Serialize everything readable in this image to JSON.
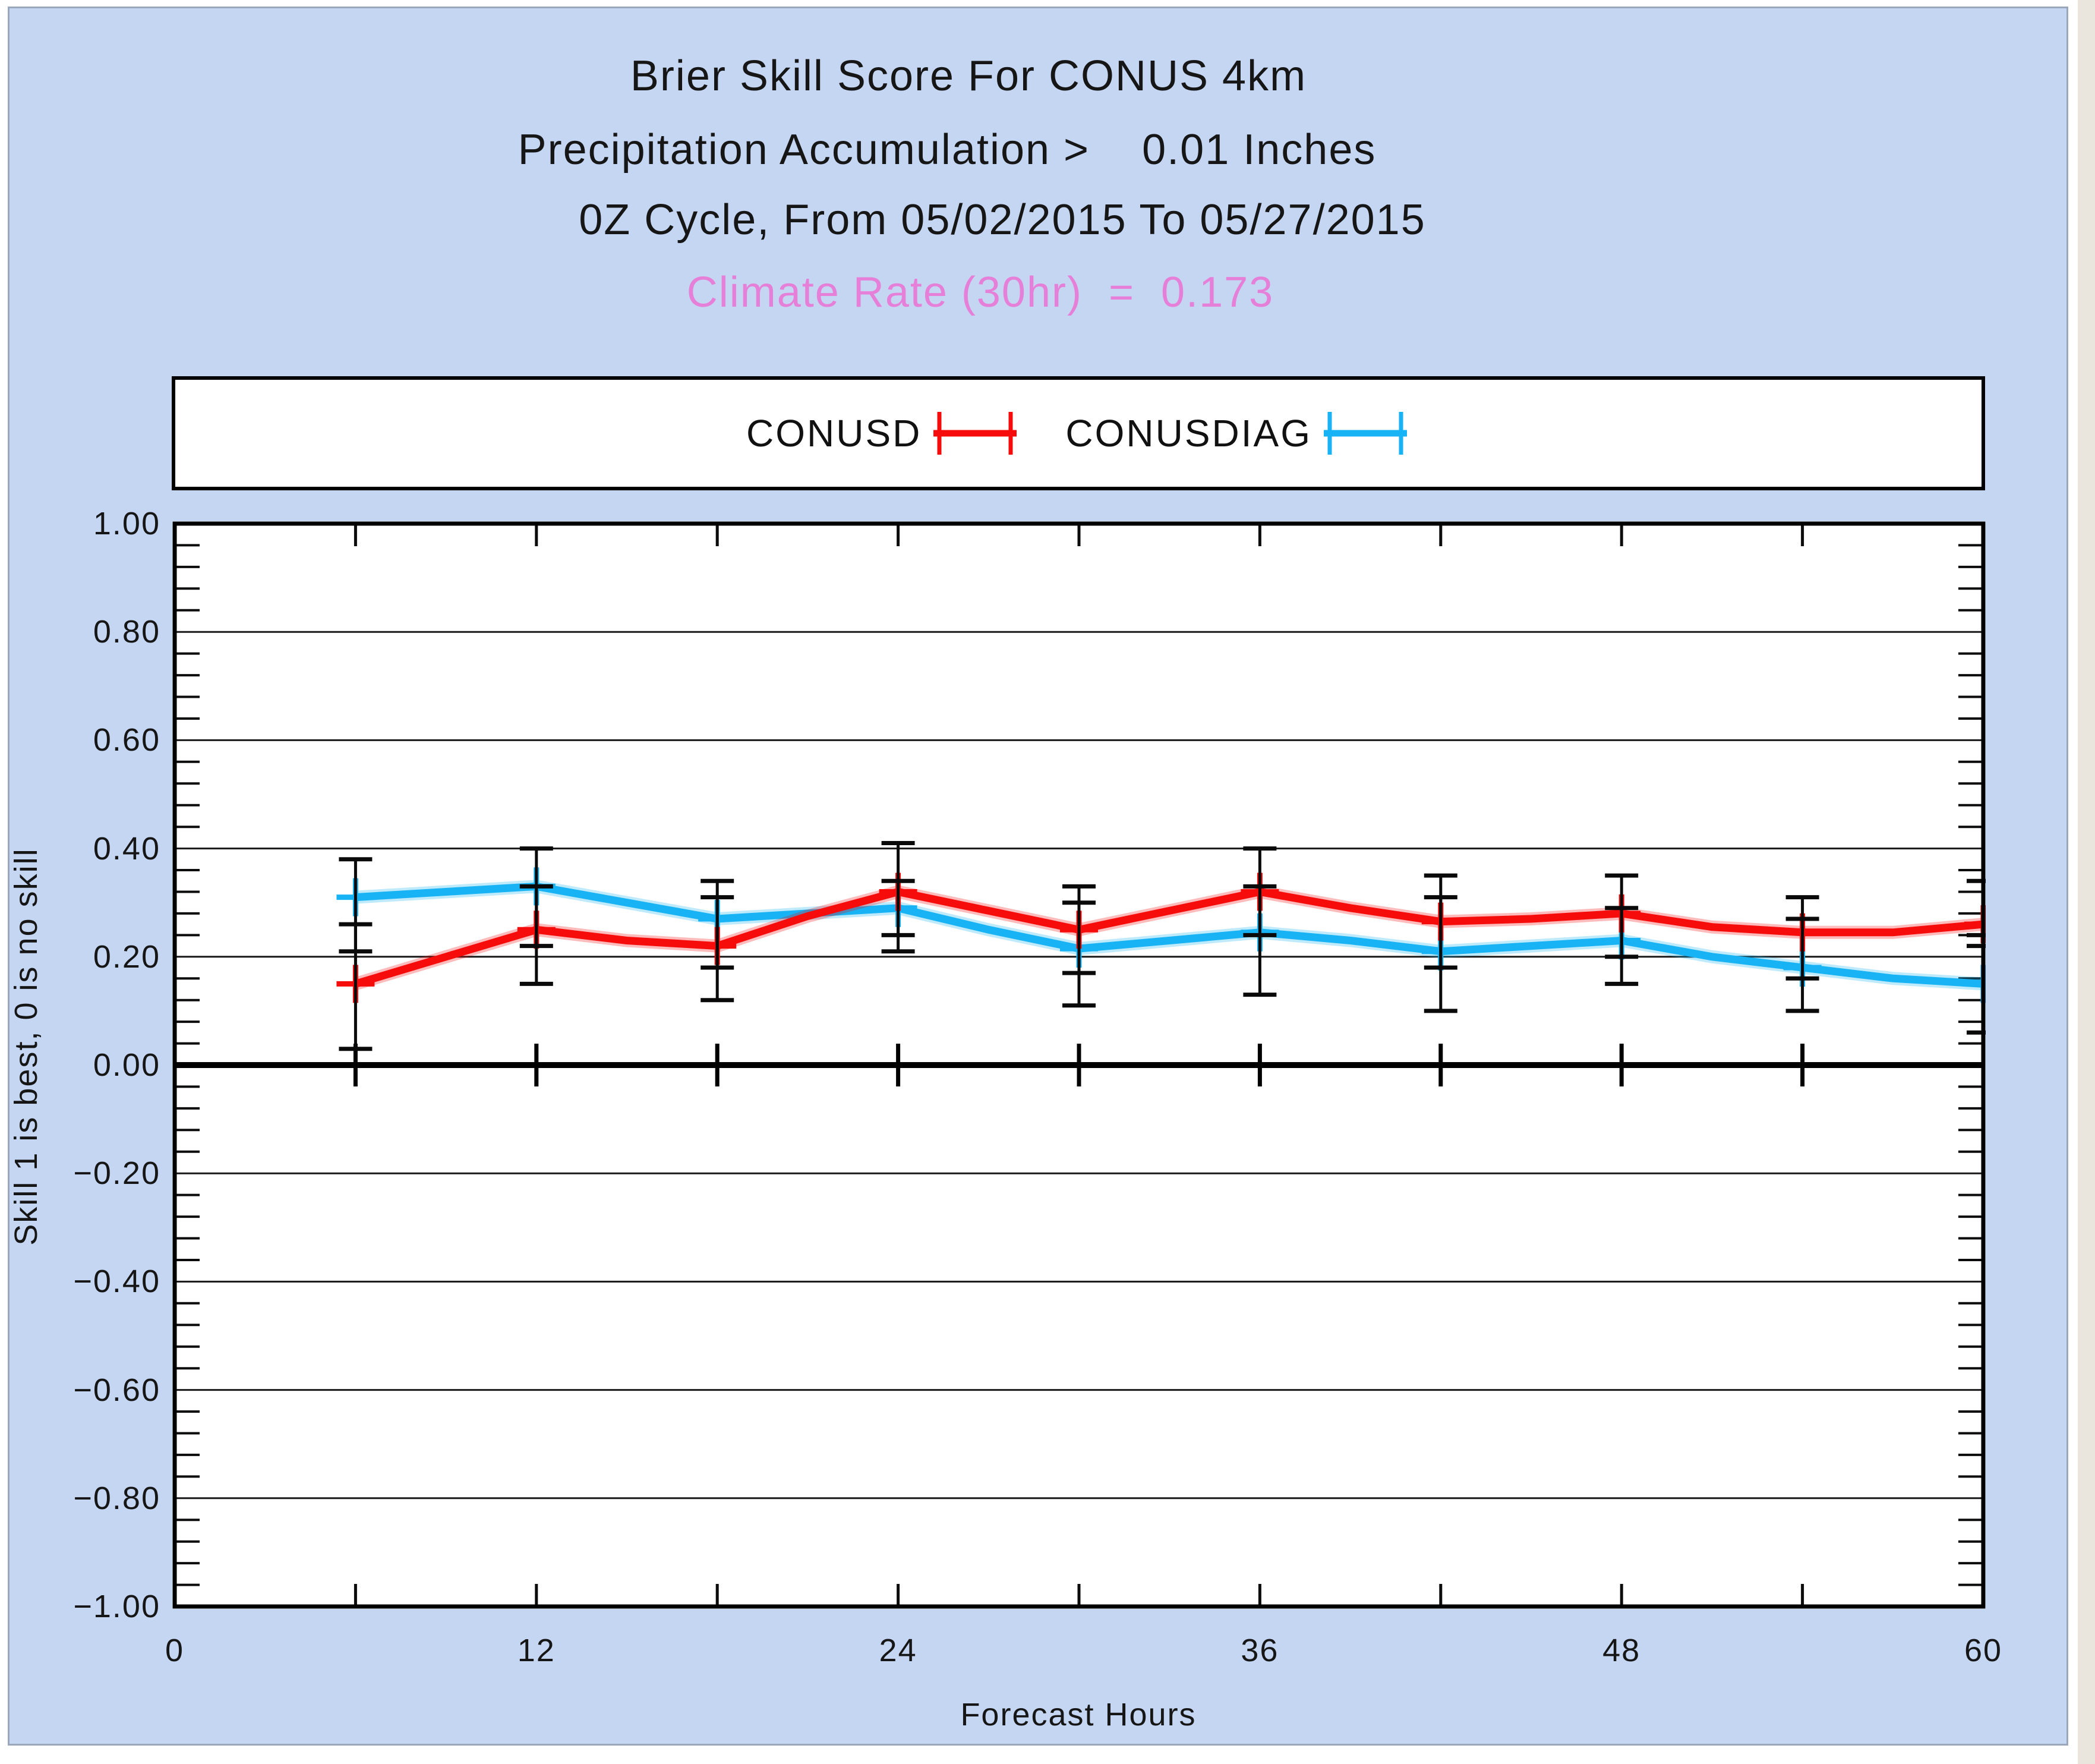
{
  "titles": {
    "line1": "Brier Skill Score For CONUS 4km",
    "line2": "Precipitation Accumulation >    0.01 Inches",
    "line3": "0Z Cycle, From 05/02/2015 To 05/27/2015",
    "climate_rate": "Climate Rate (30hr)  =  0.173"
  },
  "colors": {
    "panel_background": "#c5d6f2",
    "plot_background": "#ffffff",
    "climate_rate_text": "#e57fd8",
    "conusd_red": "#f70c0c",
    "conusdiag_cyan": "#17b3f4",
    "axis_black": "#000000",
    "grid_line": "#191919"
  },
  "legend": {
    "entries": [
      {
        "label": "CONUSD",
        "color": "#f70c0c",
        "marker": "error-bar-line"
      },
      {
        "label": "CONUSDIAG",
        "color": "#17b3f4",
        "marker": "error-bar-line"
      }
    ]
  },
  "y_axis": {
    "title": "Skill 1 is best, 0 is no skill",
    "values": [
      1.0,
      0.8,
      0.6,
      0.4,
      0.2,
      0.0,
      -0.2,
      -0.4,
      -0.6,
      -0.8,
      -1.0
    ],
    "labels": [
      "1.00",
      "0.80",
      "0.60",
      "0.40",
      "0.20",
      "0.00",
      "−0.20",
      "−0.40",
      "−0.60",
      "−0.80",
      "−1.00"
    ]
  },
  "x_axis": {
    "title": "Forecast Hours",
    "values": [
      0,
      12,
      24,
      36,
      48,
      60
    ],
    "labels": [
      "0",
      "12",
      "24",
      "36",
      "48",
      "60"
    ]
  },
  "chart_data": {
    "type": "line",
    "title": "Brier Skill Score For CONUS 4km",
    "subtitle": "Precipitation Accumulation > 0.01 Inches, 0Z Cycle, From 05/02/2015 To 05/27/2015",
    "annotation": "Climate Rate (30hr) = 0.173",
    "xlabel": "Forecast Hours",
    "ylabel": "Skill 1 is best, 0 is no skill",
    "xlim": [
      0,
      60
    ],
    "ylim": [
      -1.0,
      1.0
    ],
    "grid": "horizontal",
    "y_grid_step": 0.2,
    "y_minor_tick_step": 0.04,
    "x_tick_step_hours": 6,
    "zero_line": true,
    "legend_position": "top",
    "x": [
      6,
      9,
      12,
      15,
      18,
      21,
      24,
      27,
      30,
      33,
      36,
      39,
      42,
      45,
      48,
      51,
      54,
      57,
      60
    ],
    "series": [
      {
        "name": "CONUSDIAG",
        "color": "#17b3f4",
        "values": [
          0.31,
          0.32,
          0.33,
          0.3,
          0.27,
          0.28,
          0.29,
          0.25,
          0.215,
          0.23,
          0.245,
          0.23,
          0.21,
          0.22,
          0.23,
          0.2,
          0.18,
          0.16,
          0.15
        ],
        "error_bars": {
          "hours": [
            6,
            12,
            18,
            24,
            30,
            36,
            42,
            48,
            54,
            60
          ],
          "low": [
            0.21,
            0.22,
            0.18,
            0.21,
            0.11,
            0.13,
            0.1,
            0.15,
            0.1,
            0.06
          ],
          "high": [
            0.38,
            0.4,
            0.34,
            0.34,
            0.3,
            0.33,
            0.31,
            0.29,
            0.27,
            0.24
          ]
        }
      },
      {
        "name": "CONUSD",
        "color": "#f70c0c",
        "values": [
          0.15,
          0.2,
          0.25,
          0.23,
          0.22,
          0.275,
          0.32,
          0.285,
          0.25,
          0.285,
          0.32,
          0.29,
          0.265,
          0.27,
          0.28,
          0.255,
          0.245,
          0.245,
          0.26
        ],
        "error_bars": {
          "hours": [
            6,
            12,
            18,
            24,
            30,
            36,
            42,
            48,
            54,
            60
          ],
          "low": [
            0.03,
            0.15,
            0.12,
            0.24,
            0.17,
            0.24,
            0.18,
            0.2,
            0.16,
            0.22
          ],
          "high": [
            0.26,
            0.33,
            0.31,
            0.41,
            0.33,
            0.4,
            0.35,
            0.35,
            0.31,
            0.34
          ]
        }
      }
    ]
  }
}
